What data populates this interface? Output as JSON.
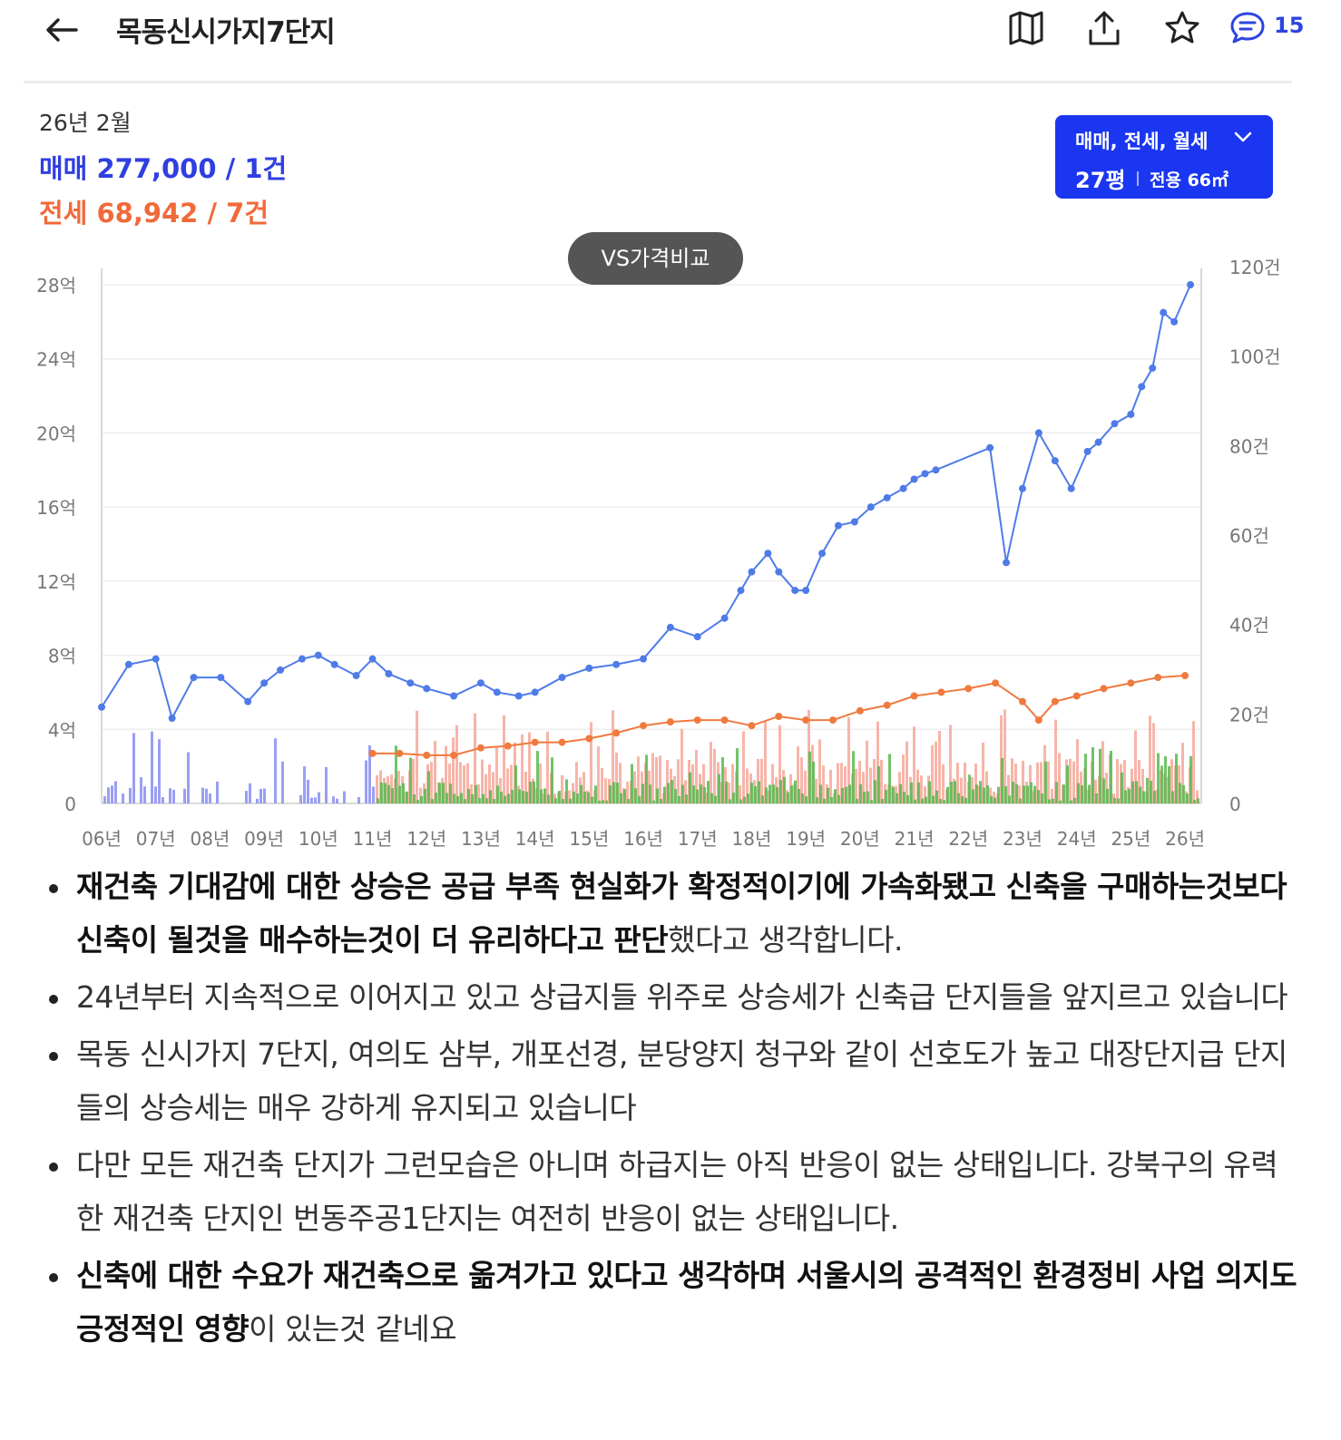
{
  "header": {
    "title": "목동신시가지7단지",
    "comment_count": "15",
    "icons": [
      "back-arrow-icon",
      "map-icon",
      "share-icon",
      "star-icon",
      "comment-icon"
    ]
  },
  "summary": {
    "period": "26년 2월",
    "sale": "매매 277,000 / 1건",
    "jeonse": "전세 68,942 / 7건"
  },
  "filter": {
    "types": "매매, 전세, 월세",
    "size": "27평",
    "area": "전용 66㎡"
  },
  "vs_button": "VS가격비교",
  "colors": {
    "sale": "#4f7be8",
    "jeonse": "#f07a3e",
    "accent": "#1b36f0",
    "bar_sale": "#8f95f2",
    "bar_jeonse": "#f5a393",
    "bar_monthly": "#58b84f"
  },
  "chart_data": {
    "type": "line",
    "x_ticks": [
      "06년",
      "07년",
      "08년",
      "09년",
      "10년",
      "11년",
      "12년",
      "13년",
      "14년",
      "15년",
      "16년",
      "17년",
      "18년",
      "19년",
      "20년",
      "21년",
      "22년",
      "23년",
      "24년",
      "25년",
      "26년"
    ],
    "y_left_ticks": [
      "0",
      "4억",
      "8억",
      "12억",
      "16억",
      "20억",
      "24억",
      "28억"
    ],
    "y_left_lim": [
      0,
      28
    ],
    "y_right_ticks": [
      "0",
      "20건",
      "40건",
      "60건",
      "80건",
      "100건",
      "120건"
    ],
    "y_right_lim": [
      0,
      120
    ],
    "grid": true,
    "series": [
      {
        "name": "매매",
        "x": [
          2006.0,
          2006.5,
          2007.0,
          2007.3,
          2007.7,
          2008.2,
          2008.7,
          2009.0,
          2009.3,
          2009.7,
          2010.0,
          2010.3,
          2010.7,
          2011.0,
          2011.3,
          2011.7,
          2012.0,
          2012.5,
          2013.0,
          2013.3,
          2013.7,
          2014.0,
          2014.5,
          2015.0,
          2015.5,
          2016.0,
          2016.5,
          2017.0,
          2017.5,
          2017.8,
          2018.0,
          2018.3,
          2018.5,
          2018.8,
          2019.0,
          2019.3,
          2019.6,
          2019.9,
          2020.2,
          2020.5,
          2020.8,
          2021.0,
          2021.2,
          2021.4,
          2022.4,
          2022.7,
          2023.0,
          2023.3,
          2023.6,
          2023.9,
          2024.2,
          2024.4,
          2024.7,
          2025.0,
          2025.2,
          2025.4,
          2025.6,
          2025.8,
          2026.1
        ],
        "values": [
          5.2,
          7.5,
          7.8,
          4.6,
          6.8,
          6.8,
          5.5,
          6.5,
          7.2,
          7.8,
          8.0,
          7.5,
          6.9,
          7.8,
          7.0,
          6.5,
          6.2,
          5.8,
          6.5,
          6.0,
          5.8,
          6.0,
          6.8,
          7.3,
          7.5,
          7.8,
          9.5,
          9.0,
          10.0,
          11.5,
          12.5,
          13.5,
          12.5,
          11.5,
          11.5,
          13.5,
          15.0,
          15.2,
          16.0,
          16.5,
          17.0,
          17.5,
          17.8,
          18.0,
          19.2,
          13.0,
          17.0,
          20.0,
          18.5,
          17.0,
          19.0,
          19.5,
          20.5,
          21.0,
          22.5,
          23.5,
          26.5,
          26.0,
          28.0
        ]
      },
      {
        "name": "전세",
        "x": [
          2011.0,
          2011.5,
          2012.0,
          2012.5,
          2013.0,
          2013.5,
          2014.0,
          2014.5,
          2015.0,
          2015.5,
          2016.0,
          2016.5,
          2017.0,
          2017.5,
          2018.0,
          2018.5,
          2019.0,
          2019.5,
          2020.0,
          2020.5,
          2021.0,
          2021.5,
          2022.0,
          2022.5,
          2023.0,
          2023.3,
          2023.6,
          2024.0,
          2024.5,
          2025.0,
          2025.5,
          2026.0
        ],
        "values": [
          2.7,
          2.7,
          2.6,
          2.6,
          3.0,
          3.1,
          3.3,
          3.3,
          3.5,
          3.8,
          4.2,
          4.4,
          4.5,
          4.5,
          4.2,
          4.7,
          4.5,
          4.5,
          5.0,
          5.3,
          5.8,
          6.0,
          6.2,
          6.5,
          5.5,
          4.5,
          5.5,
          5.8,
          6.2,
          6.5,
          6.8,
          6.9
        ]
      }
    ]
  },
  "bullets": [
    {
      "bold": "재건축 기대감에 대한 상승은 공급 부족  현실화가 확정적이기에 가속화됐고 신축을 구매하는것보다 신축이 될것을 매수하는것이 더 유리하다고 판단",
      "normal": "했다고 생각합니다."
    },
    {
      "bold": "",
      "normal": "24년부터 지속적으로 이어지고 있고 상급지들 위주로 상승세가 신축급 단지들을 앞지르고 있습니다"
    },
    {
      "bold": "",
      "normal": "목동 신시가지 7단지, 여의도 삼부, 개포선경, 분당양지 청구와 같이 선호도가 높고 대장단지급 단지들의 상승세는 매우 강하게 유지되고 있습니다"
    },
    {
      "bold": "",
      "normal": "다만 모든 재건축 단지가 그런모습은 아니며 하급지는 아직 반응이 없는 상태입니다. 강북구의 유력한 재건축 단지인 번동주공1단지는 여전히 반응이 없는 상태입니다."
    },
    {
      "bold": "신축에 대한 수요가 재건축으로 옮겨가고 있다고 생각하며 서울시의 공격적인 환경정비 사업 의지도 긍정적인 영향",
      "normal": "이 있는것 같네요"
    }
  ]
}
